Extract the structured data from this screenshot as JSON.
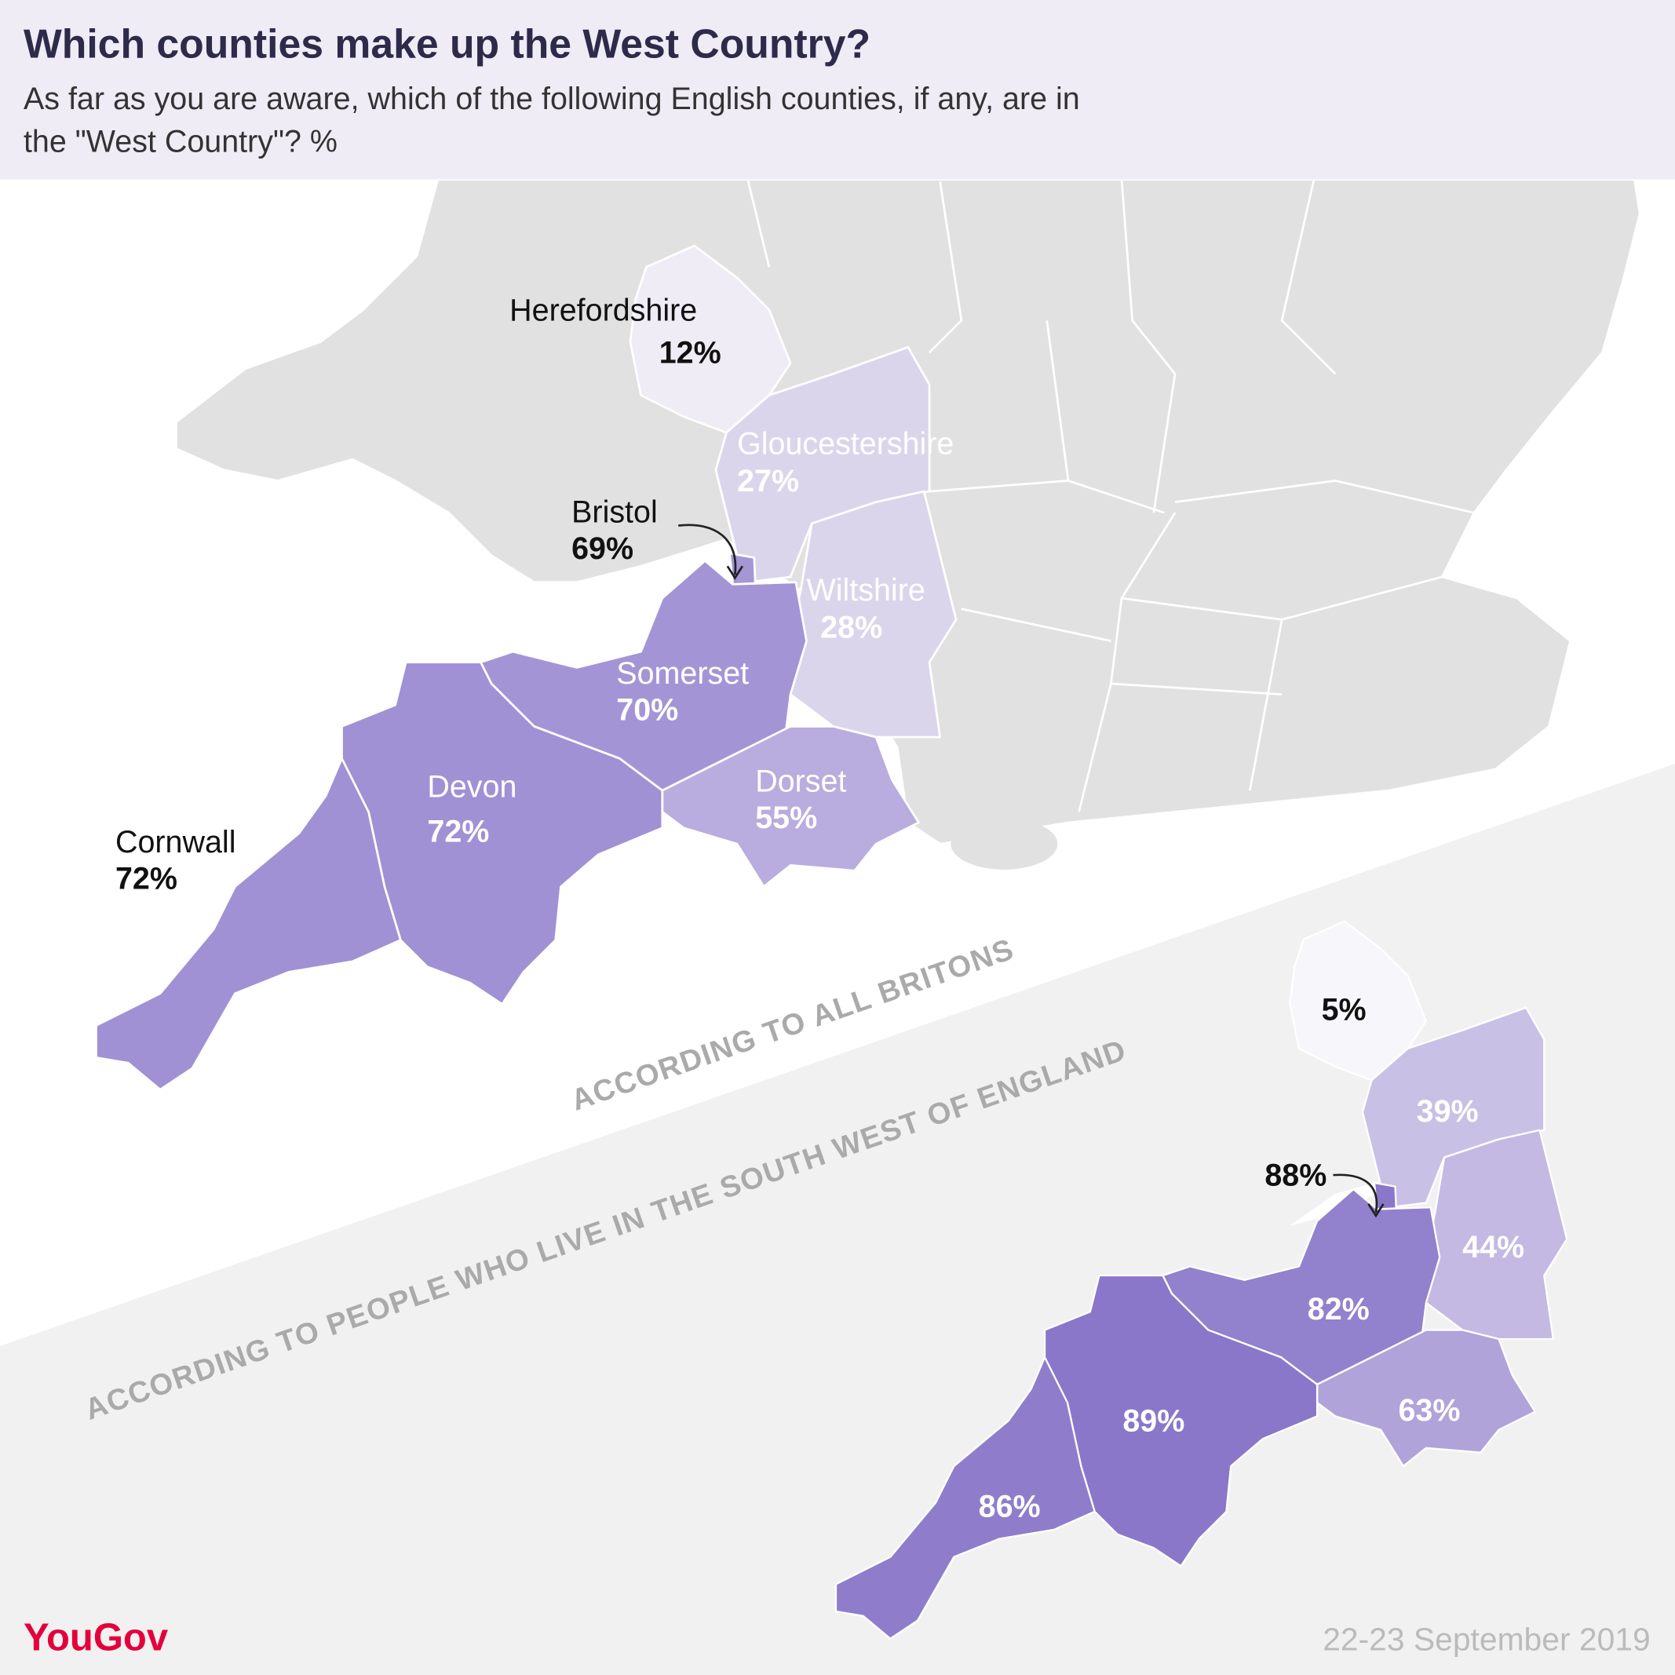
{
  "header": {
    "title": "Which counties make up the West Country?",
    "subtitle": [
      "As far as you are aware, which of the following English counties, if any, are in",
      "the \"West Country\"? %"
    ]
  },
  "map_all": {
    "caption": "ACCORDING TO ALL BRITONS",
    "counties": [
      {
        "name": "Herefordshire",
        "value": "12%",
        "color": "#efecf6"
      },
      {
        "name": "Gloucestershire",
        "value": "27%",
        "color": "#dbd5ec"
      },
      {
        "name": "Wiltshire",
        "value": "28%",
        "color": "#dbd5ec"
      },
      {
        "name": "Bristol",
        "value": "69%",
        "color": "#a596d5"
      },
      {
        "name": "Somerset",
        "value": "70%",
        "color": "#a395d5"
      },
      {
        "name": "Dorset",
        "value": "55%",
        "color": "#b9acde"
      },
      {
        "name": "Devon",
        "value": "72%",
        "color": "#a091d4"
      },
      {
        "name": "Cornwall",
        "value": "72%",
        "color": "#a091d4"
      }
    ]
  },
  "map_southwest": {
    "caption": "ACCORDING TO PEOPLE WHO LIVE IN THE SOUTH WEST OF ENGLAND",
    "counties": [
      {
        "value": "5%",
        "color": "#f7f6fa"
      },
      {
        "value": "39%",
        "color": "#c9c0e6"
      },
      {
        "value": "44%",
        "color": "#c3b9e3"
      },
      {
        "value": "88%",
        "color": "#8b77c9"
      },
      {
        "value": "82%",
        "color": "#9281cc"
      },
      {
        "value": "63%",
        "color": "#b0a3da"
      },
      {
        "value": "89%",
        "color": "#8b77c9"
      },
      {
        "value": "86%",
        "color": "#8f7dcb"
      }
    ]
  },
  "footer": {
    "brand": "YouGov",
    "date": "22-23 September 2019"
  }
}
